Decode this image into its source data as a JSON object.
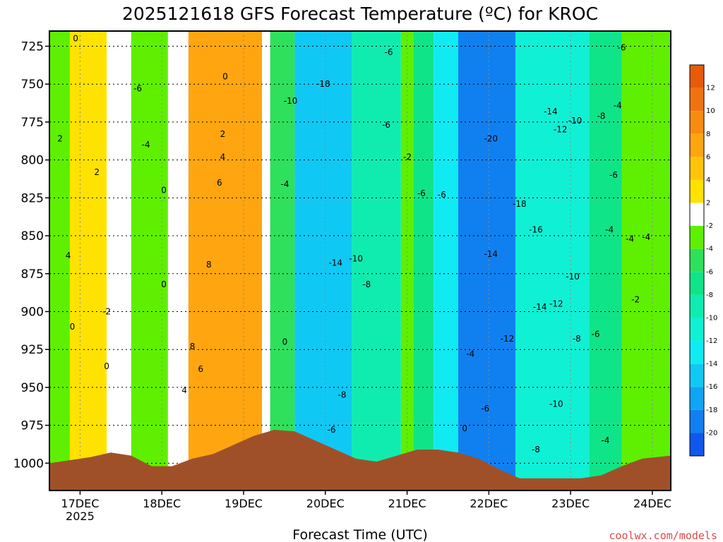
{
  "chart_data": {
    "type": "heatmap",
    "title": "2025121618 GFS Forecast Temperature (ºC) for KROC",
    "xlabel": "Forecast Time (UTC)",
    "ylabel": "",
    "credit": "coolwx.com/models",
    "x_ticks": [
      {
        "label": "17DEC",
        "sub": "2025",
        "day": 0.375
      },
      {
        "label": "18DEC",
        "day": 1.375
      },
      {
        "label": "19DEC",
        "day": 2.375
      },
      {
        "label": "20DEC",
        "day": 3.375
      },
      {
        "label": "21DEC",
        "day": 4.375
      },
      {
        "label": "22DEC",
        "day": 5.375
      },
      {
        "label": "23DEC",
        "day": 6.375
      },
      {
        "label": "24DEC",
        "day": 7.375
      }
    ],
    "x_range_days": [
      0,
      7.6
    ],
    "y_ticks": [
      725,
      750,
      775,
      800,
      825,
      850,
      875,
      900,
      925,
      950,
      975,
      1000
    ],
    "y_range_hpa": [
      715,
      1018
    ],
    "colorbar": {
      "labels": [
        "12",
        "10",
        "8",
        "6",
        "4",
        "2",
        "-2",
        "-4",
        "-6",
        "-8",
        "-10",
        "-12",
        "-14",
        "-16",
        "-18",
        "-20"
      ],
      "bands": [
        {
          "lo": 12,
          "hi": 14,
          "color": "#e65c0a"
        },
        {
          "lo": 10,
          "hi": 12,
          "color": "#ef7410"
        },
        {
          "lo": 8,
          "hi": 10,
          "color": "#f78c10"
        },
        {
          "lo": 6,
          "hi": 8,
          "color": "#ffa510"
        },
        {
          "lo": 4,
          "hi": 6,
          "color": "#ffc40a"
        },
        {
          "lo": 2,
          "hi": 4,
          "color": "#ffe200"
        },
        {
          "lo": -2,
          "hi": 2,
          "color": "#ffffff"
        },
        {
          "lo": -4,
          "hi": -2,
          "color": "#5ef000"
        },
        {
          "lo": -6,
          "hi": -4,
          "color": "#2fe05c"
        },
        {
          "lo": -8,
          "hi": -6,
          "color": "#10e488"
        },
        {
          "lo": -10,
          "hi": -8,
          "color": "#10ecb0"
        },
        {
          "lo": -12,
          "hi": -10,
          "color": "#10f0d4"
        },
        {
          "lo": -14,
          "hi": -12,
          "color": "#10eaf2"
        },
        {
          "lo": -16,
          "hi": -14,
          "color": "#10c8f4"
        },
        {
          "lo": -18,
          "hi": -16,
          "color": "#10a4f4"
        },
        {
          "lo": -20,
          "hi": -18,
          "color": "#1080f0"
        },
        {
          "lo": -22,
          "hi": -20,
          "color": "#1058ec"
        }
      ]
    },
    "surface_color": "#a05029",
    "surface_pressure_hpa": [
      {
        "day": 0.0,
        "p": 1000
      },
      {
        "day": 0.5,
        "p": 996
      },
      {
        "day": 0.75,
        "p": 993
      },
      {
        "day": 1.0,
        "p": 995
      },
      {
        "day": 1.25,
        "p": 1002
      },
      {
        "day": 1.5,
        "p": 1002
      },
      {
        "day": 1.75,
        "p": 997
      },
      {
        "day": 2.0,
        "p": 994
      },
      {
        "day": 2.25,
        "p": 988
      },
      {
        "day": 2.5,
        "p": 982
      },
      {
        "day": 2.75,
        "p": 978
      },
      {
        "day": 3.0,
        "p": 979
      },
      {
        "day": 3.25,
        "p": 985
      },
      {
        "day": 3.5,
        "p": 991
      },
      {
        "day": 3.75,
        "p": 997
      },
      {
        "day": 4.0,
        "p": 999
      },
      {
        "day": 4.25,
        "p": 995
      },
      {
        "day": 4.5,
        "p": 991
      },
      {
        "day": 4.75,
        "p": 991
      },
      {
        "day": 5.0,
        "p": 993
      },
      {
        "day": 5.25,
        "p": 997
      },
      {
        "day": 5.5,
        "p": 1004
      },
      {
        "day": 5.75,
        "p": 1010
      },
      {
        "day": 6.0,
        "p": 1010
      },
      {
        "day": 6.25,
        "p": 1010
      },
      {
        "day": 6.5,
        "p": 1010
      },
      {
        "day": 6.75,
        "p": 1008
      },
      {
        "day": 7.0,
        "p": 1002
      },
      {
        "day": 7.25,
        "p": 997
      },
      {
        "day": 7.6,
        "p": 995
      }
    ],
    "temperature_regimes": [
      {
        "from_day": 0.0,
        "to_day": 0.25,
        "value": -3
      },
      {
        "from_day": 0.25,
        "to_day": 0.7,
        "value": 3
      },
      {
        "from_day": 0.7,
        "to_day": 1.0,
        "value": -1
      },
      {
        "from_day": 1.0,
        "to_day": 1.45,
        "value": -4
      },
      {
        "from_day": 1.45,
        "to_day": 1.7,
        "value": 0
      },
      {
        "from_day": 1.7,
        "to_day": 2.6,
        "value": 7
      },
      {
        "from_day": 2.6,
        "to_day": 2.7,
        "value": 0
      },
      {
        "from_day": 2.7,
        "to_day": 3.0,
        "value": -5
      },
      {
        "from_day": 3.0,
        "to_day": 3.7,
        "value": -15
      },
      {
        "from_day": 3.7,
        "to_day": 4.3,
        "value": -9
      },
      {
        "from_day": 4.3,
        "to_day": 4.45,
        "value": -3
      },
      {
        "from_day": 4.45,
        "to_day": 4.7,
        "value": -7
      },
      {
        "from_day": 4.7,
        "to_day": 5.0,
        "value": -13
      },
      {
        "from_day": 5.0,
        "to_day": 5.7,
        "value": -19
      },
      {
        "from_day": 5.7,
        "to_day": 6.6,
        "value": -12
      },
      {
        "from_day": 6.6,
        "to_day": 7.0,
        "value": -7
      },
      {
        "from_day": 7.0,
        "to_day": 7.6,
        "value": -4
      }
    ],
    "contour_labels": [
      {
        "text": "0",
        "day": 0.32,
        "p": 720
      },
      {
        "text": "2",
        "day": 0.13,
        "p": 786
      },
      {
        "text": "2",
        "day": 0.58,
        "p": 808
      },
      {
        "text": "4",
        "day": 0.23,
        "p": 863
      },
      {
        "text": "0",
        "day": 0.28,
        "p": 910
      },
      {
        "text": "-2",
        "day": 0.7,
        "p": 900
      },
      {
        "text": "0",
        "day": 0.7,
        "p": 936
      },
      {
        "text": "-6",
        "day": 1.08,
        "p": 753
      },
      {
        "text": "-4",
        "day": 1.18,
        "p": 790
      },
      {
        "text": "0",
        "day": 1.4,
        "p": 820
      },
      {
        "text": "0",
        "day": 1.4,
        "p": 882
      },
      {
        "text": "0",
        "day": 2.15,
        "p": 745
      },
      {
        "text": "2",
        "day": 2.12,
        "p": 783
      },
      {
        "text": "4",
        "day": 2.12,
        "p": 798
      },
      {
        "text": "6",
        "day": 2.08,
        "p": 815
      },
      {
        "text": "8",
        "day": 1.95,
        "p": 869
      },
      {
        "text": "8",
        "day": 1.75,
        "p": 923
      },
      {
        "text": "6",
        "day": 1.85,
        "p": 938
      },
      {
        "text": "4",
        "day": 1.65,
        "p": 952
      },
      {
        "text": "-4",
        "day": 2.88,
        "p": 816
      },
      {
        "text": "-10",
        "day": 2.95,
        "p": 761
      },
      {
        "text": "0",
        "day": 2.88,
        "p": 920
      },
      {
        "text": "-18",
        "day": 3.35,
        "p": 750
      },
      {
        "text": "-14",
        "day": 3.5,
        "p": 868
      },
      {
        "text": "-10",
        "day": 3.75,
        "p": 865
      },
      {
        "text": "-8",
        "day": 3.88,
        "p": 882
      },
      {
        "text": "-8",
        "day": 3.58,
        "p": 955
      },
      {
        "text": "-6",
        "day": 3.45,
        "p": 978
      },
      {
        "text": "-6",
        "day": 4.15,
        "p": 729
      },
      {
        "text": "-6",
        "day": 4.12,
        "p": 777
      },
      {
        "text": "-2",
        "day": 4.38,
        "p": 798
      },
      {
        "text": "-6",
        "day": 4.55,
        "p": 822
      },
      {
        "text": "-6",
        "day": 4.8,
        "p": 823
      },
      {
        "text": "0",
        "day": 5.08,
        "p": 977
      },
      {
        "text": "-6",
        "day": 5.33,
        "p": 964
      },
      {
        "text": "-4",
        "day": 5.15,
        "p": 928
      },
      {
        "text": "-14",
        "day": 5.4,
        "p": 862
      },
      {
        "text": "-20",
        "day": 5.4,
        "p": 786
      },
      {
        "text": "-18",
        "day": 5.75,
        "p": 829
      },
      {
        "text": "-16",
        "day": 5.95,
        "p": 846
      },
      {
        "text": "-14",
        "day": 6.13,
        "p": 768
      },
      {
        "text": "-12",
        "day": 6.25,
        "p": 780
      },
      {
        "text": "-10",
        "day": 6.43,
        "p": 774
      },
      {
        "text": "-8",
        "day": 6.75,
        "p": 771
      },
      {
        "text": "-6",
        "day": 6.9,
        "p": 810
      },
      {
        "text": "-4",
        "day": 6.95,
        "p": 764
      },
      {
        "text": "-6",
        "day": 7.0,
        "p": 726
      },
      {
        "text": "-4",
        "day": 6.85,
        "p": 846
      },
      {
        "text": "-4",
        "day": 7.1,
        "p": 852
      },
      {
        "text": "-4",
        "day": 7.3,
        "p": 851
      },
      {
        "text": "-10",
        "day": 6.4,
        "p": 877
      },
      {
        "text": "-14",
        "day": 6.0,
        "p": 897
      },
      {
        "text": "-12",
        "day": 6.2,
        "p": 895
      },
      {
        "text": "-12",
        "day": 5.6,
        "p": 918
      },
      {
        "text": "-8",
        "day": 6.45,
        "p": 918
      },
      {
        "text": "-6",
        "day": 6.68,
        "p": 915
      },
      {
        "text": "-10",
        "day": 6.2,
        "p": 961
      },
      {
        "text": "-8",
        "day": 5.95,
        "p": 991
      },
      {
        "text": "-4",
        "day": 6.8,
        "p": 985
      },
      {
        "text": "-2",
        "day": 7.17,
        "p": 892
      }
    ]
  }
}
